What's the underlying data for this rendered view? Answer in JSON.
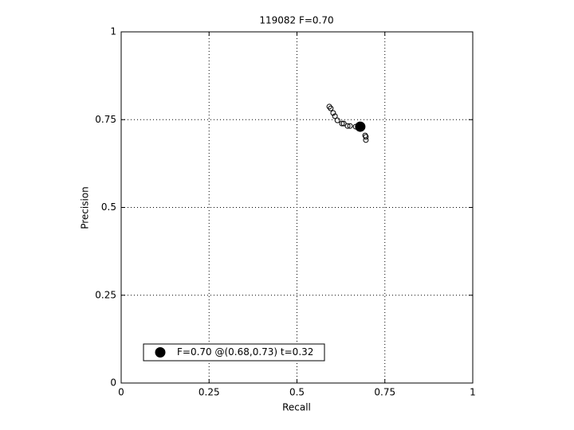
{
  "chart_data": {
    "type": "scatter",
    "title": "119082 F=0.70",
    "xlabel": "Recall",
    "ylabel": "Precision",
    "xlim": [
      0,
      1
    ],
    "ylim": [
      0,
      1
    ],
    "xticks": [
      0,
      0.25,
      0.5,
      0.75,
      1
    ],
    "yticks": [
      0,
      0.25,
      0.5,
      0.75,
      1
    ],
    "grid": true,
    "legend_position": "lower left",
    "series": [
      {
        "color": "#000000",
        "filled": false,
        "x": [
          0.592,
          0.596,
          0.603,
          0.608,
          0.615,
          0.628,
          0.633,
          0.644,
          0.651,
          0.667,
          0.694,
          0.696,
          0.696
        ],
        "values": [
          0.787,
          0.782,
          0.769,
          0.76,
          0.748,
          0.739,
          0.739,
          0.732,
          0.732,
          0.73,
          0.705,
          0.701,
          0.692
        ]
      },
      {
        "name": "F=0.70 @(0.68,0.73) t=0.32",
        "color": "#000000",
        "filled": true,
        "x": [
          0.68
        ],
        "values": [
          0.73
        ]
      }
    ]
  }
}
